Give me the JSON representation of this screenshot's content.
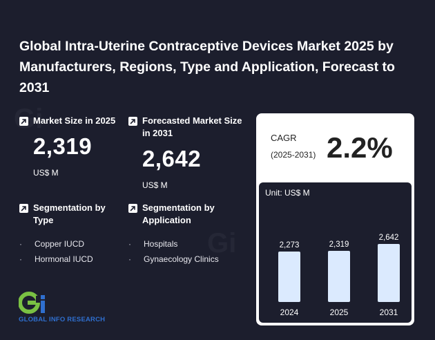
{
  "title": "Global Intra-Uterine Contraceptive Devices Market 2025 by Manufacturers, Regions, Type and Application, Forecast to 2031",
  "market_size": {
    "label": "Market Size in 2025",
    "value": "2,319",
    "unit": "US$ M"
  },
  "forecast_size": {
    "label": "Forecasted Market Size in 2031",
    "value": "2,642",
    "unit": "US$ M"
  },
  "seg_type": {
    "label": "Segmentation by Type",
    "items": [
      "Copper IUCD",
      "Hormonal IUCD"
    ]
  },
  "seg_app": {
    "label": "Segmentation by Application",
    "items": [
      "Hospitals",
      "Gynaecology Clinics"
    ]
  },
  "cagr": {
    "label": "CAGR",
    "years": "(2025-2031)",
    "value": "2.2%"
  },
  "logo": {
    "text": "GLOBAL INFO RESEARCH",
    "watermark": "GLOBAL INFO RESEARCH"
  },
  "colors": {
    "background": "#1c1e2d",
    "bar": "#dbeafe",
    "accent_blue": "#2f6fcf",
    "accent_green": "#7ac143"
  },
  "chart_data": {
    "type": "bar",
    "unit_label": "Unit: US$ M",
    "categories": [
      "2024",
      "2025",
      "2031"
    ],
    "values": [
      2273,
      2319,
      2642
    ],
    "value_labels": [
      "2,273",
      "2,319",
      "2,642"
    ],
    "ylim": [
      0,
      3000
    ]
  }
}
